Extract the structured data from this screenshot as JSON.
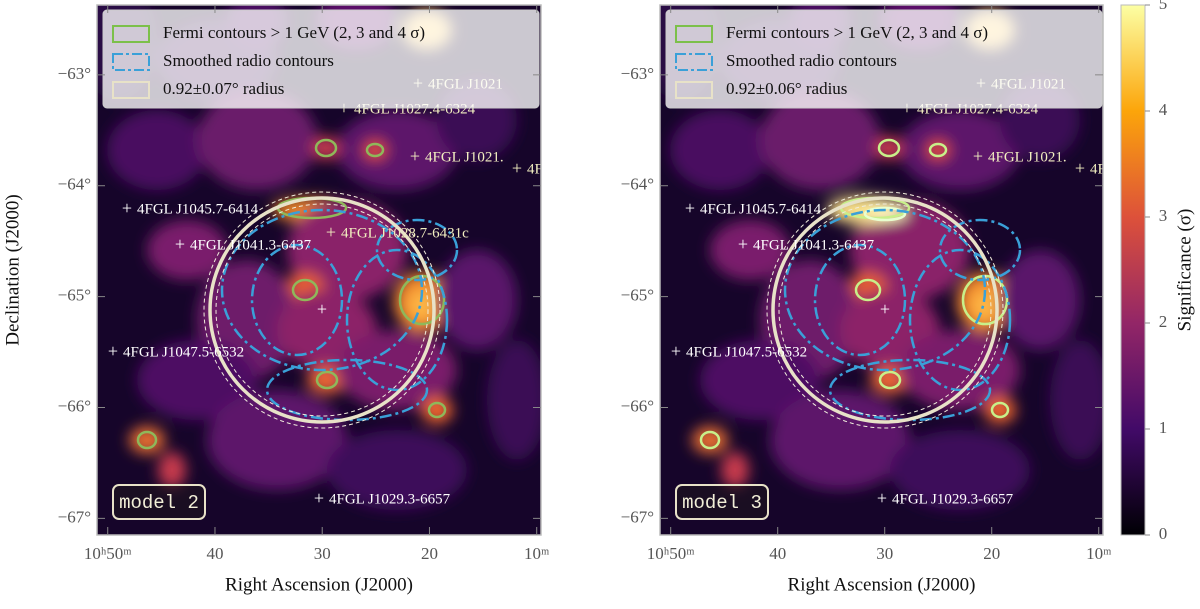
{
  "chart_data": [
    {
      "type": "map",
      "xlabel": "Right Ascension (J2000)",
      "ylabel": "Declination (J2000)",
      "xlim": [
        51.0,
        9.6
      ],
      "ylim": [
        -67.15,
        -62.37
      ],
      "xticks": [
        {
          "value": 50,
          "label": "10ʰ50ᵐ"
        },
        {
          "value": 40,
          "label": "40"
        },
        {
          "value": 30,
          "label": "30"
        },
        {
          "value": 20,
          "label": "20"
        },
        {
          "value": 10,
          "label": "10ᵐ"
        }
      ],
      "yticks": [
        {
          "value": -63,
          "label": "−63°"
        },
        {
          "value": -64,
          "label": "−64°"
        },
        {
          "value": -65,
          "label": "−65°"
        },
        {
          "value": -66,
          "label": "−66°"
        },
        {
          "value": -67,
          "label": "−67°"
        }
      ],
      "legend": [
        "Fermi contours > 1 GeV (2, 3 and 4 σ)",
        "Smoothed radio contours",
        "0.92±0.07° radius"
      ],
      "sources": [
        "4FGL J1021",
        "4FGL J1027.4-6324",
        "4FGL J1021.",
        "4F",
        "4FGL J1045.7-6414",
        "4FGL J1041.3-6437",
        "4FGL J1028.7-6431c",
        "4FGL J1047.5-6532",
        "4FGL J1029.3-6657"
      ],
      "model_label": "model 2"
    },
    {
      "type": "map",
      "xlabel": "Right Ascension (J2000)",
      "xlim": [
        51.0,
        9.6
      ],
      "ylim": [
        -67.15,
        -62.37
      ],
      "xticks": [
        {
          "value": 50,
          "label": "10ʰ50ᵐ"
        },
        {
          "value": 40,
          "label": "40"
        },
        {
          "value": 30,
          "label": "30"
        },
        {
          "value": 20,
          "label": "20"
        },
        {
          "value": 10,
          "label": "10ᵐ"
        }
      ],
      "yticks": [
        {
          "value": -63,
          "label": "−63°"
        },
        {
          "value": -64,
          "label": "−64°"
        },
        {
          "value": -65,
          "label": "−65°"
        },
        {
          "value": -66,
          "label": "−66°"
        },
        {
          "value": -67,
          "label": "−67°"
        }
      ],
      "legend": [
        "Fermi contours > 1 GeV (2, 3 and 4 σ)",
        "Smoothed radio contours",
        "0.92±0.06° radius"
      ],
      "sources": [
        "4FGL J1021",
        "4FGL J1027.4-6324",
        "4FGL J1021.",
        "4F",
        "4FGL J1045.7-6414",
        "4FGL J1041.3-6437",
        "4FGL J1047.5-6532",
        "4FGL J1029.3-6657"
      ],
      "model_label": "model 3",
      "colorbar": {
        "label": "Significance (σ)",
        "lim": [
          0,
          5
        ],
        "ticks": [
          0,
          1,
          2,
          3,
          4,
          5
        ]
      }
    }
  ]
}
